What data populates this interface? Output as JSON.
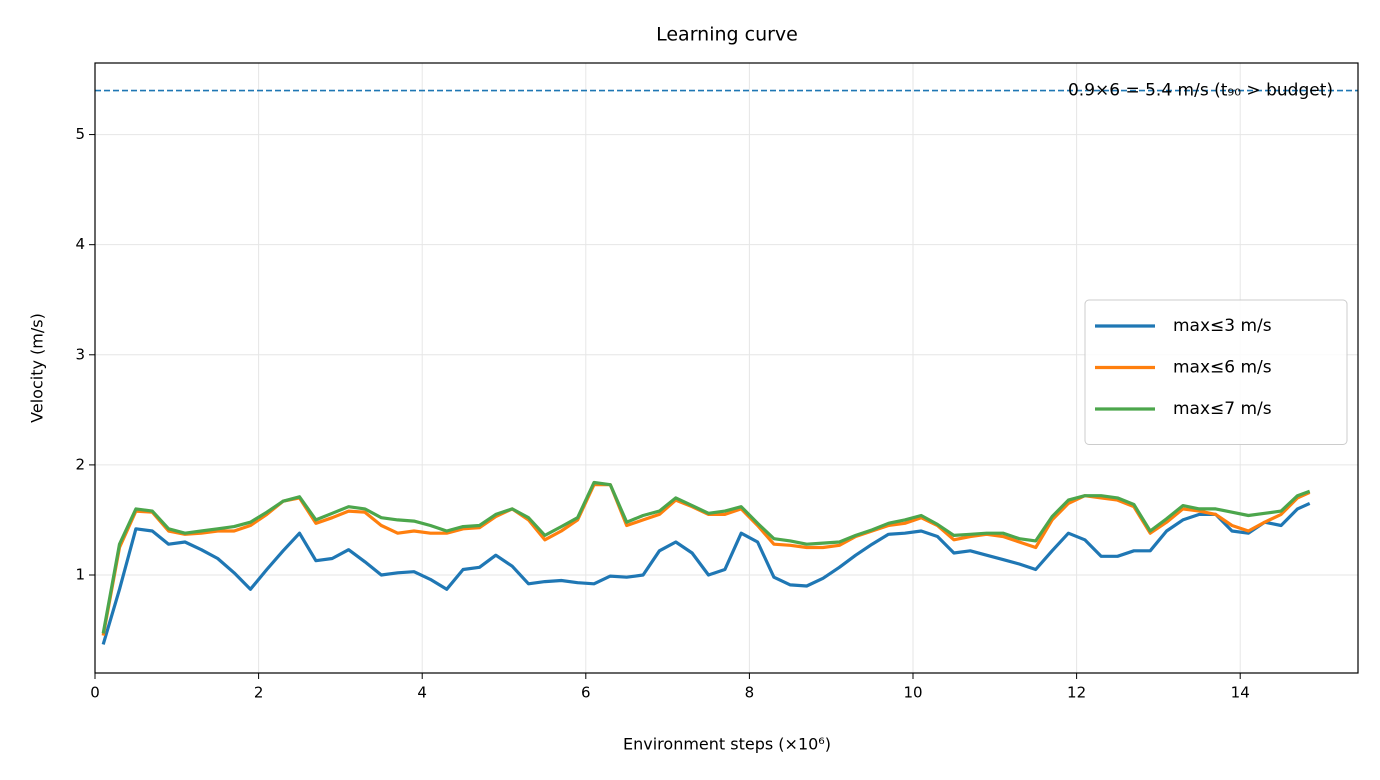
{
  "chart_data": {
    "type": "line",
    "title": "Learning curve",
    "x_label": "Environment steps (×10⁶)",
    "y_label": "Velocity (m/s)",
    "xlim": [
      0,
      15.44
    ],
    "ylim": [
      0.11,
      5.65
    ],
    "xticks": [
      0,
      2,
      4,
      6,
      8,
      10,
      12,
      14
    ],
    "yticks": [
      1,
      2,
      3,
      4,
      5
    ],
    "grid": true,
    "legend": "center right",
    "reference_line": {
      "value": 5.4,
      "label": "0.9×6 = 5.4 m/s (t₉₀ > budget)",
      "color": "#1f77b4"
    },
    "x": [
      0.1,
      0.3,
      0.5,
      0.7,
      0.9,
      1.1,
      1.3,
      1.5,
      1.7,
      1.9,
      2.1,
      2.3,
      2.5,
      2.7,
      2.9,
      3.1,
      3.3,
      3.5,
      3.7,
      3.9,
      4.1,
      4.3,
      4.5,
      4.7,
      4.9,
      5.1,
      5.3,
      5.5,
      5.7,
      5.9,
      6.1,
      6.3,
      6.5,
      6.7,
      6.9,
      7.1,
      7.3,
      7.5,
      7.7,
      7.9,
      8.1,
      8.3,
      8.5,
      8.7,
      8.9,
      9.1,
      9.3,
      9.5,
      9.7,
      9.9,
      10.1,
      10.3,
      10.5,
      10.7,
      10.9,
      11.1,
      11.3,
      11.5,
      11.7,
      11.9,
      12.1,
      12.3,
      12.5,
      12.7,
      12.9,
      13.1,
      13.3,
      13.5,
      13.7,
      13.9,
      14.1,
      14.3,
      14.5,
      14.7,
      14.85
    ],
    "series": [
      {
        "name": "max≤3 m/s",
        "color": "#1f77b4",
        "values": [
          0.37,
          0.87,
          1.42,
          1.4,
          1.28,
          1.3,
          1.23,
          1.15,
          1.02,
          0.87,
          1.05,
          1.22,
          1.38,
          1.13,
          1.15,
          1.23,
          1.12,
          1.0,
          1.02,
          1.03,
          0.96,
          0.87,
          1.05,
          1.07,
          1.18,
          1.08,
          0.92,
          0.94,
          0.95,
          0.93,
          0.92,
          0.99,
          0.98,
          1.0,
          1.22,
          1.3,
          1.2,
          1.0,
          1.05,
          1.38,
          1.3,
          0.98,
          0.91,
          0.9,
          0.97,
          1.07,
          1.18,
          1.28,
          1.37,
          1.38,
          1.4,
          1.35,
          1.2,
          1.22,
          1.18,
          1.14,
          1.1,
          1.05,
          1.22,
          1.38,
          1.32,
          1.17,
          1.17,
          1.22,
          1.22,
          1.4,
          1.5,
          1.55,
          1.55,
          1.4,
          1.38,
          1.48,
          1.45,
          1.6,
          1.65
        ]
      },
      {
        "name": "max≤6 m/s",
        "color": "#ff7f0e",
        "values": [
          0.45,
          1.25,
          1.58,
          1.57,
          1.4,
          1.37,
          1.38,
          1.4,
          1.4,
          1.45,
          1.55,
          1.67,
          1.7,
          1.47,
          1.52,
          1.58,
          1.57,
          1.45,
          1.38,
          1.4,
          1.38,
          1.38,
          1.42,
          1.43,
          1.53,
          1.6,
          1.5,
          1.32,
          1.4,
          1.5,
          1.82,
          1.82,
          1.45,
          1.5,
          1.55,
          1.68,
          1.62,
          1.55,
          1.55,
          1.6,
          1.45,
          1.28,
          1.27,
          1.25,
          1.25,
          1.27,
          1.35,
          1.4,
          1.45,
          1.47,
          1.52,
          1.45,
          1.32,
          1.35,
          1.37,
          1.35,
          1.3,
          1.25,
          1.5,
          1.65,
          1.72,
          1.7,
          1.68,
          1.62,
          1.38,
          1.48,
          1.6,
          1.58,
          1.55,
          1.45,
          1.4,
          1.48,
          1.55,
          1.7,
          1.75
        ]
      },
      {
        "name": "max≤7 m/s",
        "color": "#4ca64c",
        "values": [
          0.47,
          1.28,
          1.6,
          1.58,
          1.42,
          1.38,
          1.4,
          1.42,
          1.44,
          1.48,
          1.57,
          1.67,
          1.71,
          1.5,
          1.56,
          1.62,
          1.6,
          1.52,
          1.5,
          1.49,
          1.45,
          1.4,
          1.44,
          1.45,
          1.55,
          1.6,
          1.52,
          1.36,
          1.44,
          1.52,
          1.84,
          1.82,
          1.48,
          1.54,
          1.58,
          1.7,
          1.63,
          1.56,
          1.58,
          1.62,
          1.47,
          1.33,
          1.31,
          1.28,
          1.29,
          1.3,
          1.36,
          1.41,
          1.47,
          1.5,
          1.54,
          1.46,
          1.36,
          1.37,
          1.38,
          1.38,
          1.33,
          1.31,
          1.53,
          1.68,
          1.72,
          1.72,
          1.7,
          1.64,
          1.4,
          1.51,
          1.63,
          1.6,
          1.6,
          1.57,
          1.54,
          1.56,
          1.58,
          1.72,
          1.76
        ]
      }
    ]
  }
}
